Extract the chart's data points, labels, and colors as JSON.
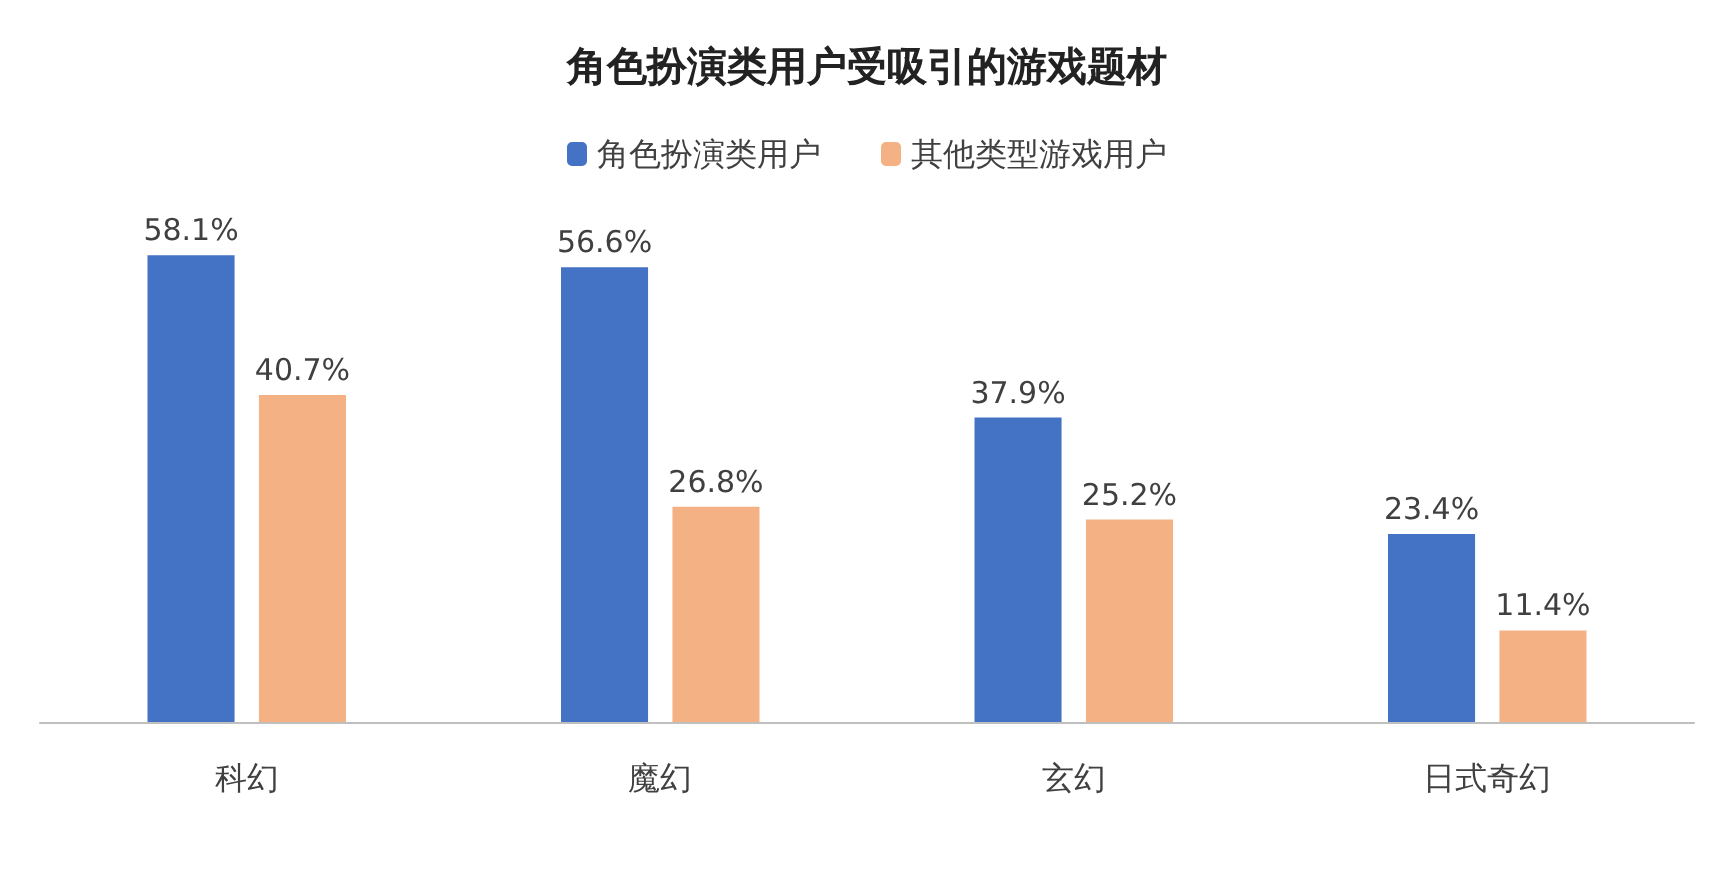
{
  "chart_data": {
    "type": "bar",
    "title": "角色扮演类用户受吸引的游戏题材",
    "categories": [
      "科幻",
      "魔幻",
      "玄幻",
      "日式奇幻"
    ],
    "series": [
      {
        "name": "角色扮演类用户",
        "color": "#4472c4",
        "values": [
          58.1,
          56.6,
          37.9,
          23.4
        ],
        "value_labels": [
          "58.1%",
          "56.6%",
          "37.9%",
          "23.4%"
        ]
      },
      {
        "name": "其他类型游戏用户",
        "color": "#f4b183",
        "values": [
          40.7,
          26.8,
          25.2,
          11.4
        ],
        "value_labels": [
          "40.7%",
          "26.8%",
          "25.2%",
          "11.4%"
        ]
      }
    ],
    "legend": "top"
  }
}
